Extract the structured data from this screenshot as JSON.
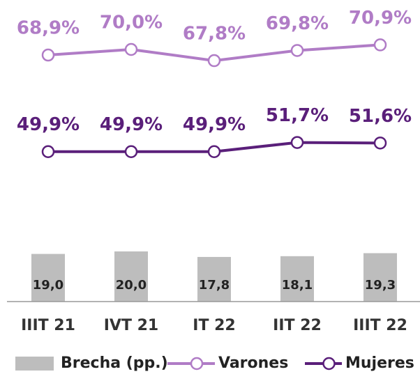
{
  "chart_data": {
    "type": "combo",
    "categories": [
      "IIIT 21",
      "IVT 21",
      "IT 22",
      "IIT 22",
      "IIIT 22"
    ],
    "series": [
      {
        "name": "Brecha (pp.)",
        "type": "bar",
        "color": "#bdbdbd",
        "values": [
          19.0,
          20.0,
          17.8,
          18.1,
          19.3
        ],
        "value_labels": [
          "19,0",
          "20,0",
          "17,8",
          "18,1",
          "19,3"
        ]
      },
      {
        "name": "Varones",
        "type": "line",
        "color": "#b07cc6",
        "values": [
          68.9,
          70.0,
          67.8,
          69.8,
          70.9
        ],
        "value_labels": [
          "68,9%",
          "70,0%",
          "67,8%",
          "69,8%",
          "70,9%"
        ]
      },
      {
        "name": "Mujeres",
        "type": "line",
        "color": "#5a1f7a",
        "values": [
          49.9,
          49.9,
          49.9,
          51.7,
          51.6
        ],
        "value_labels": [
          "49,9%",
          "49,9%",
          "49,9%",
          "51,7%",
          "51,6%"
        ]
      }
    ]
  }
}
